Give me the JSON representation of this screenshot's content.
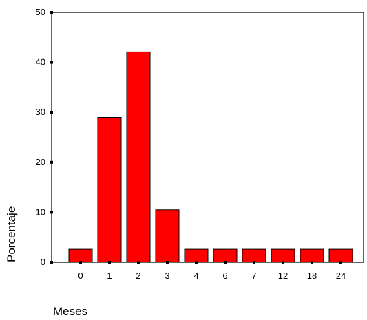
{
  "chart_data": {
    "type": "bar",
    "categories": [
      "0",
      "1",
      "2",
      "3",
      "4",
      "6",
      "7",
      "12",
      "18",
      "24"
    ],
    "values": [
      2.6,
      29.0,
      42.1,
      10.5,
      2.6,
      2.6,
      2.6,
      2.6,
      2.6,
      2.6
    ],
    "ylim": [
      0,
      50
    ],
    "yticks": [
      "0",
      "10",
      "20",
      "30",
      "40",
      "50"
    ],
    "xlabel": "Meses",
    "ylabel": "Porcentaje",
    "grid": false,
    "legend": "none"
  },
  "colors": {
    "bar_fill": "#ff0000",
    "bar_stroke": "#000000",
    "axis": "#000000",
    "background": "#ffffff"
  }
}
